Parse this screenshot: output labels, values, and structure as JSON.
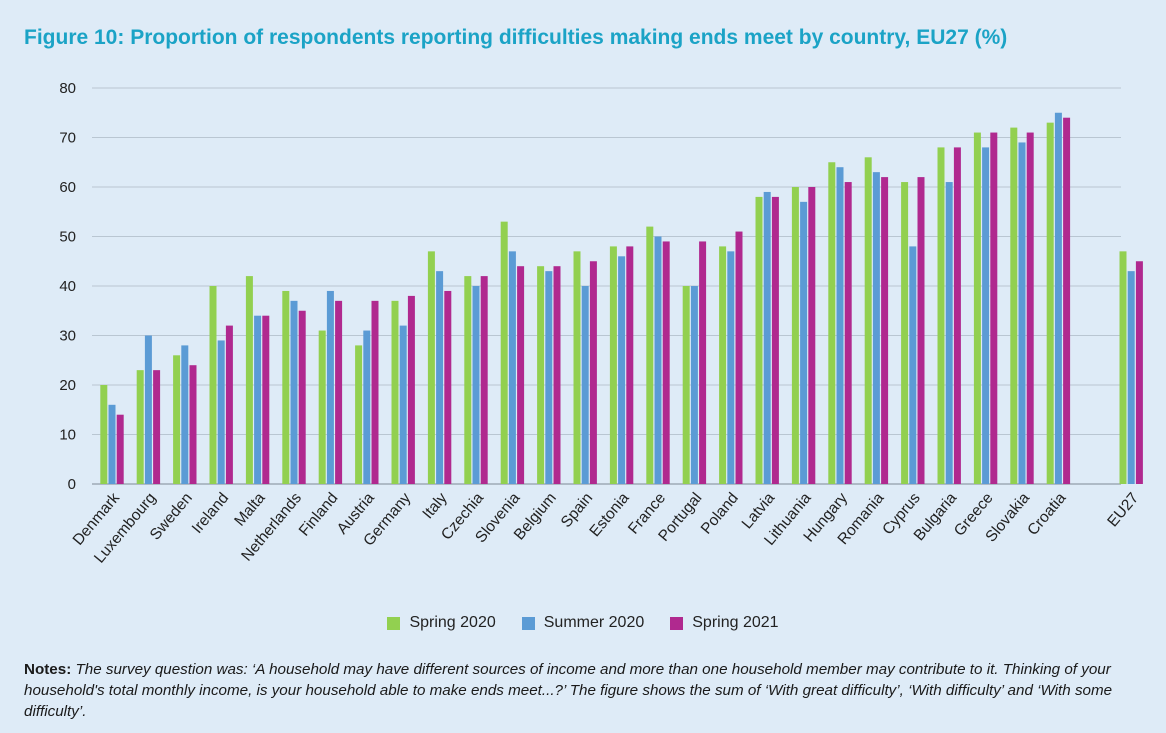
{
  "title": "Figure 10: Proportion of respondents reporting difficulties making ends meet by country, EU27 (%)",
  "notes": {
    "label": "Notes:",
    "text": "The survey question was: ‘A household may have different sources of income and more than one household member may contribute to it. Thinking of your household's total monthly income, is your household able to make ends meet...?’ The figure shows the sum of ‘With great difficulty’, ‘With difficulty’ and ‘With some difficulty’."
  },
  "colors": {
    "spring2020": "#92d050",
    "summer2020": "#5b9bd5",
    "spring2021": "#b0298f",
    "grid": "#b9c6d2",
    "axis_text": "#222222"
  },
  "chart_data": {
    "type": "bar",
    "title": "Figure 10: Proportion of respondents reporting difficulties making ends meet by country, EU27 (%)",
    "xlabel": "",
    "ylabel": "",
    "ylim": [
      0,
      80
    ],
    "yticks": [
      0,
      10,
      20,
      30,
      40,
      50,
      60,
      70,
      80
    ],
    "grid": true,
    "legend_position": "bottom",
    "categories": [
      "Denmark",
      "Luxembourg",
      "Sweden",
      "Ireland",
      "Malta",
      "Netherlands",
      "Finland",
      "Austria",
      "Germany",
      "Italy",
      "Czechia",
      "Slovenia",
      "Belgium",
      "Spain",
      "Estonia",
      "France",
      "Portugal",
      "Poland",
      "Latvia",
      "Lithuania",
      "Hungary",
      "Romania",
      "Cyprus",
      "Bulgaria",
      "Greece",
      "Slovakia",
      "Croatia",
      "EU27"
    ],
    "series": [
      {
        "name": "Spring 2020",
        "values": [
          20,
          23,
          26,
          40,
          42,
          39,
          31,
          28,
          37,
          47,
          42,
          53,
          44,
          47,
          48,
          52,
          40,
          48,
          58,
          60,
          65,
          66,
          61,
          68,
          71,
          72,
          73,
          47
        ]
      },
      {
        "name": "Summer 2020",
        "values": [
          16,
          30,
          28,
          29,
          34,
          37,
          39,
          31,
          32,
          43,
          40,
          47,
          43,
          40,
          46,
          50,
          40,
          47,
          59,
          57,
          64,
          63,
          48,
          61,
          68,
          69,
          75,
          43
        ]
      },
      {
        "name": "Spring 2021",
        "values": [
          14,
          23,
          24,
          32,
          34,
          35,
          37,
          37,
          38,
          39,
          42,
          44,
          44,
          45,
          48,
          49,
          49,
          51,
          58,
          60,
          61,
          62,
          62,
          68,
          71,
          71,
          74,
          45
        ]
      }
    ]
  }
}
